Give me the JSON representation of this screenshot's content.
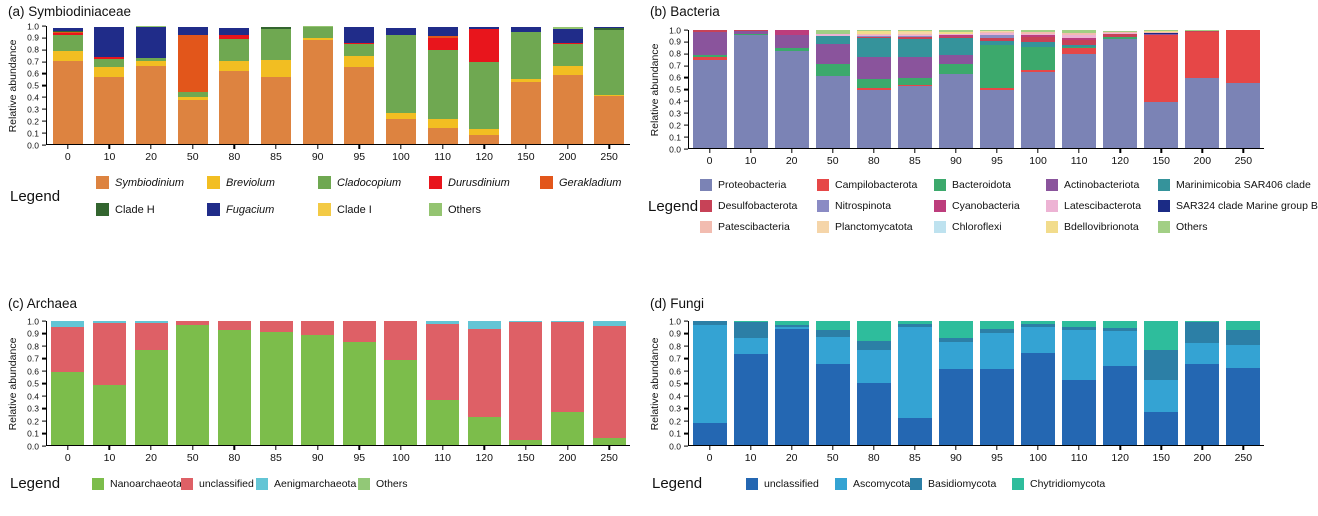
{
  "chart_data": [
    {
      "type": "bar",
      "stacked": true,
      "panel_label": "(a) Symbiodiniaceae",
      "ylabel": "Relative abundance",
      "legend_title": "Legend",
      "ylim": [
        0,
        1
      ],
      "grid": false,
      "legend_position": "bottom",
      "yticks": [
        "0.0",
        "0.1",
        "0.2",
        "0.3",
        "0.4",
        "0.5",
        "0.6",
        "0.7",
        "0.8",
        "0.9",
        "1.0"
      ],
      "categories": [
        "0",
        "10",
        "20",
        "50",
        "80",
        "85",
        "90",
        "95",
        "100",
        "110",
        "120",
        "150",
        "200",
        "250"
      ],
      "series": [
        {
          "name": "Symbiodinium",
          "color": "#DD8340",
          "italic": true,
          "values": [
            0.7,
            0.565,
            0.665,
            0.37,
            0.615,
            0.565,
            0.885,
            0.655,
            0.215,
            0.135,
            0.075,
            0.525,
            0.585,
            0.405
          ]
        },
        {
          "name": "Breviolum",
          "color": "#F2BE22",
          "italic": true,
          "values": [
            0.09,
            0.09,
            0.04,
            0.03,
            0.085,
            0.145,
            0.01,
            0.09,
            0.045,
            0.075,
            0.05,
            0.025,
            0.08,
            0.01
          ]
        },
        {
          "name": "Cladocopium",
          "color": "#6FA851",
          "italic": true,
          "values": [
            0.13,
            0.065,
            0.02,
            0.045,
            0.19,
            0.265,
            0.095,
            0.1,
            0.66,
            0.59,
            0.57,
            0.4,
            0.18,
            0.55
          ]
        },
        {
          "name": "Durusdinium",
          "color": "#E8151C",
          "italic": true,
          "values": [
            0.02,
            0.015,
            0.005,
            0,
            0.035,
            0,
            0.005,
            0.015,
            0.005,
            0.1,
            0.28,
            0,
            0.01,
            0
          ]
        },
        {
          "name": "Gerakladium",
          "color": "#E2561B",
          "italic": true,
          "values": [
            0.01,
            0,
            0,
            0.48,
            0,
            0,
            0,
            0,
            0,
            0.015,
            0,
            0,
            0,
            0
          ]
        },
        {
          "name": "Clade H",
          "color": "#33652F",
          "italic": false,
          "values": [
            0.01,
            0,
            0,
            0,
            0,
            0.015,
            0,
            0,
            0,
            0,
            0,
            0,
            0,
            0.015
          ]
        },
        {
          "name": "Fugacium",
          "color": "#202C89",
          "italic": true,
          "values": [
            0.02,
            0.255,
            0.26,
            0.065,
            0.06,
            0,
            0,
            0.13,
            0.055,
            0.075,
            0.02,
            0.04,
            0.12,
            0.01
          ]
        },
        {
          "name": "Clade I",
          "color": "#F3CA45",
          "italic": false,
          "values": [
            0,
            0,
            0,
            0,
            0,
            0,
            0,
            0,
            0,
            0,
            0,
            0,
            0,
            0
          ]
        },
        {
          "name": "Others",
          "color": "#94C471",
          "italic": false,
          "values": [
            0,
            0,
            0.01,
            0,
            0,
            0,
            0.005,
            0,
            0.005,
            0,
            0,
            0,
            0.02,
            0.005
          ]
        }
      ]
    },
    {
      "type": "bar",
      "stacked": true,
      "panel_label": "(b) Bacteria",
      "ylabel": "Relative abundance",
      "legend_title": "Legend",
      "ylim": [
        0,
        1
      ],
      "grid": false,
      "legend_position": "bottom",
      "yticks": [
        "0.0",
        "0.1",
        "0.2",
        "0.3",
        "0.4",
        "0.5",
        "0.6",
        "0.7",
        "0.8",
        "0.9",
        "1.0"
      ],
      "categories": [
        "0",
        "10",
        "20",
        "50",
        "80",
        "85",
        "90",
        "95",
        "100",
        "110",
        "120",
        "150",
        "200",
        "250"
      ],
      "series": [
        {
          "name": "Proteobacteria",
          "color": "#7B83B5",
          "italic": false,
          "values": [
            0.75,
            0.955,
            0.82,
            0.61,
            0.495,
            0.525,
            0.625,
            0.495,
            0.645,
            0.8,
            0.92,
            0.39,
            0.59,
            0.555
          ]
        },
        {
          "name": "Campilobacterota",
          "color": "#E64747",
          "italic": false,
          "values": [
            0.02,
            0,
            0,
            0,
            0.01,
            0.01,
            0,
            0.01,
            0.015,
            0.045,
            0.005,
            0.565,
            0.395,
            0.445
          ]
        },
        {
          "name": "Bacteroidota",
          "color": "#3CA96C",
          "italic": false,
          "values": [
            0.02,
            0.015,
            0.03,
            0.1,
            0.08,
            0.06,
            0.085,
            0.365,
            0.2,
            0.01,
            0.015,
            0,
            0,
            0
          ]
        },
        {
          "name": "Actinobacteriota",
          "color": "#8A549C",
          "italic": false,
          "values": [
            0.19,
            0.02,
            0.105,
            0.175,
            0.185,
            0.175,
            0.075,
            0,
            0,
            0,
            0,
            0.01,
            0,
            0
          ]
        },
        {
          "name": "Marinimicobia SAR406 clade",
          "color": "#35939B",
          "italic": false,
          "values": [
            0,
            0,
            0,
            0.065,
            0.16,
            0.155,
            0.15,
            0.035,
            0.035,
            0.02,
            0,
            0,
            0,
            0
          ]
        },
        {
          "name": "Desulfobacterota",
          "color": "#C74257",
          "italic": false,
          "values": [
            0.02,
            0.01,
            0,
            0,
            0.01,
            0.015,
            0.01,
            0.03,
            0.045,
            0.04,
            0.025,
            0,
            0.01,
            0
          ]
        },
        {
          "name": "Nitrospinota",
          "color": "#8A8BC4",
          "italic": false,
          "values": [
            0,
            0,
            0,
            0,
            0.01,
            0.01,
            0,
            0.02,
            0,
            0,
            0,
            0,
            0,
            0
          ]
        },
        {
          "name": "Cyanobacteria",
          "color": "#BD3D7C",
          "italic": false,
          "values": [
            0,
            0,
            0.045,
            0,
            0,
            0,
            0.01,
            0.005,
            0.02,
            0.02,
            0,
            0,
            0,
            0
          ]
        },
        {
          "name": "Latescibacterota",
          "color": "#EDB3D4",
          "italic": false,
          "values": [
            0,
            0,
            0,
            0.015,
            0.01,
            0.01,
            0.01,
            0.015,
            0.01,
            0.02,
            0.01,
            0,
            0,
            0
          ]
        },
        {
          "name": "SAR324 clade Marine group B",
          "color": "#1B2B85",
          "italic": false,
          "values": [
            0,
            0,
            0,
            0,
            0,
            0,
            0,
            0,
            0,
            0,
            0,
            0.01,
            0,
            0
          ]
        },
        {
          "name": "Patescibacteria",
          "color": "#F2BCB0",
          "italic": false,
          "values": [
            0,
            0,
            0,
            0,
            0.005,
            0.01,
            0,
            0.01,
            0.01,
            0.02,
            0.005,
            0.01,
            0,
            0
          ]
        },
        {
          "name": "Planctomycatota",
          "color": "#F5D5A9",
          "italic": false,
          "values": [
            0,
            0,
            0,
            0,
            0.005,
            0.01,
            0.005,
            0.005,
            0,
            0,
            0,
            0,
            0,
            0
          ]
        },
        {
          "name": "Chloroflexi",
          "color": "#BEE2EF",
          "italic": false,
          "values": [
            0,
            0,
            0,
            0,
            0,
            0,
            0,
            0,
            0,
            0,
            0,
            0,
            0,
            0
          ]
        },
        {
          "name": "Bdellovibrionota",
          "color": "#F2DC8C",
          "italic": false,
          "values": [
            0,
            0,
            0,
            0,
            0.02,
            0.015,
            0.01,
            0.005,
            0,
            0,
            0,
            0.005,
            0,
            0
          ]
        },
        {
          "name": "Others",
          "color": "#A2CF85",
          "italic": false,
          "values": [
            0,
            0,
            0,
            0.035,
            0.01,
            0.005,
            0.02,
            0.005,
            0.02,
            0.025,
            0.01,
            0.01,
            0.005,
            0
          ]
        }
      ]
    },
    {
      "type": "bar",
      "stacked": true,
      "panel_label": "(c) Archaea",
      "ylabel": "Relative abundance",
      "legend_title": "Legend",
      "ylim": [
        0,
        1
      ],
      "grid": false,
      "legend_position": "bottom",
      "yticks": [
        "0.0",
        "0.1",
        "0.2",
        "0.3",
        "0.4",
        "0.5",
        "0.6",
        "0.7",
        "0.8",
        "0.9",
        "1.0"
      ],
      "categories": [
        "0",
        "10",
        "20",
        "50",
        "80",
        "85",
        "90",
        "95",
        "100",
        "110",
        "120",
        "150",
        "200",
        "250"
      ],
      "series": [
        {
          "name": "Nanoarchaeota",
          "color": "#7CBD4B",
          "italic": false,
          "values": [
            0.585,
            0.48,
            0.765,
            0.965,
            0.925,
            0.915,
            0.885,
            0.83,
            0.685,
            0.36,
            0.225,
            0.04,
            0.27,
            0.055
          ]
        },
        {
          "name": "unclassified",
          "color": "#DE6066",
          "italic": false,
          "values": [
            0.37,
            0.505,
            0.22,
            0.035,
            0.075,
            0.085,
            0.115,
            0.17,
            0.315,
            0.615,
            0.71,
            0.95,
            0.72,
            0.905
          ]
        },
        {
          "name": "Aenigmarchaeota",
          "color": "#63C5D5",
          "italic": false,
          "values": [
            0.045,
            0.015,
            0.015,
            0,
            0,
            0,
            0,
            0,
            0,
            0.025,
            0.065,
            0.01,
            0.01,
            0.04
          ]
        },
        {
          "name": "Others",
          "color": "#92C877",
          "italic": false,
          "values": [
            0,
            0,
            0,
            0,
            0,
            0,
            0,
            0,
            0,
            0,
            0,
            0,
            0,
            0
          ]
        }
      ]
    },
    {
      "type": "bar",
      "stacked": true,
      "panel_label": "(d) Fungi",
      "ylabel": "Relative abundance",
      "legend_title": "Legend",
      "ylim": [
        0,
        1
      ],
      "grid": false,
      "legend_position": "bottom",
      "yticks": [
        "0.0",
        "0.1",
        "0.2",
        "0.3",
        "0.4",
        "0.5",
        "0.6",
        "0.7",
        "0.8",
        "0.9",
        "1.0"
      ],
      "categories": [
        "0",
        "10",
        "20",
        "50",
        "80",
        "85",
        "90",
        "95",
        "100",
        "110",
        "120",
        "150",
        "200",
        "250"
      ],
      "series": [
        {
          "name": "unclassified",
          "color": "#2467B2",
          "italic": false,
          "values": [
            0.18,
            0.735,
            0.935,
            0.655,
            0.5,
            0.215,
            0.61,
            0.61,
            0.745,
            0.525,
            0.635,
            0.265,
            0.655,
            0.625
          ]
        },
        {
          "name": "Ascomycota",
          "color": "#34A3D3",
          "italic": false,
          "values": [
            0.79,
            0.125,
            0.02,
            0.22,
            0.27,
            0.735,
            0.22,
            0.29,
            0.21,
            0.405,
            0.285,
            0.26,
            0.17,
            0.18
          ]
        },
        {
          "name": "Basidiomycota",
          "color": "#2C7FA6",
          "italic": false,
          "values": [
            0.03,
            0.13,
            0.015,
            0.055,
            0.065,
            0.025,
            0.035,
            0.035,
            0.02,
            0.025,
            0.025,
            0.24,
            0.165,
            0.12
          ]
        },
        {
          "name": "Chytridiomycota",
          "color": "#2EBD9C",
          "italic": false,
          "values": [
            0,
            0.01,
            0.03,
            0.07,
            0.165,
            0.025,
            0.135,
            0.065,
            0.025,
            0.045,
            0.055,
            0.235,
            0.01,
            0.075
          ]
        }
      ]
    }
  ]
}
